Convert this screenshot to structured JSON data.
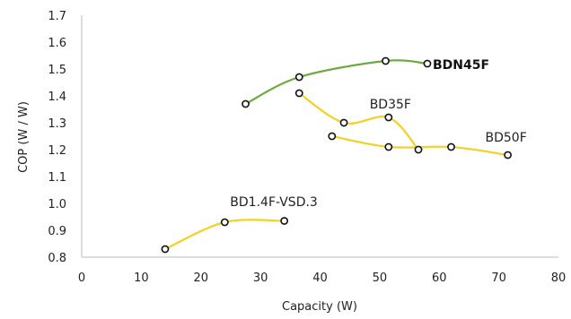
{
  "chart_data": {
    "type": "line",
    "title": "",
    "xlabel": "Capacity (W)",
    "ylabel": "COP (W / W)",
    "xlim": [
      0,
      80
    ],
    "ylim": [
      0.8,
      1.7
    ],
    "xticks": [
      0,
      10,
      20,
      30,
      40,
      50,
      60,
      70,
      80
    ],
    "yticks": [
      0.8,
      0.9,
      1.0,
      1.1,
      1.2,
      1.3,
      1.4,
      1.5,
      1.6,
      1.7
    ],
    "x_tick_labels": [
      "0",
      "10",
      "20",
      "30",
      "40",
      "50",
      "60",
      "70",
      "80"
    ],
    "y_tick_labels": [
      "0.8",
      "0.9",
      "1.0",
      "1.1",
      "1.2",
      "1.3",
      "1.4",
      "1.5",
      "1.6",
      "1.7"
    ],
    "grid": false,
    "legend": "none",
    "series": [
      {
        "name": "BDN45F",
        "color": "#6aaa3a",
        "label_bold": true,
        "x": [
          27.5,
          36.5,
          51,
          58
        ],
        "y": [
          1.37,
          1.47,
          1.53,
          1.52
        ]
      },
      {
        "name": "BD35F",
        "color": "#f2d024",
        "label_bold": false,
        "x": [
          36.5,
          44,
          51.5,
          56.5
        ],
        "y": [
          1.41,
          1.3,
          1.32,
          1.2
        ]
      },
      {
        "name": "BD50F",
        "color": "#f2d024",
        "label_bold": false,
        "x": [
          42,
          51.5,
          62,
          71.5
        ],
        "y": [
          1.25,
          1.21,
          1.21,
          1.18
        ]
      },
      {
        "name": "BD1.4F-VSD.3",
        "color": "#f2d024",
        "label_bold": false,
        "x": [
          14,
          24,
          34
        ],
        "y": [
          0.83,
          0.93,
          0.935
        ]
      }
    ]
  }
}
